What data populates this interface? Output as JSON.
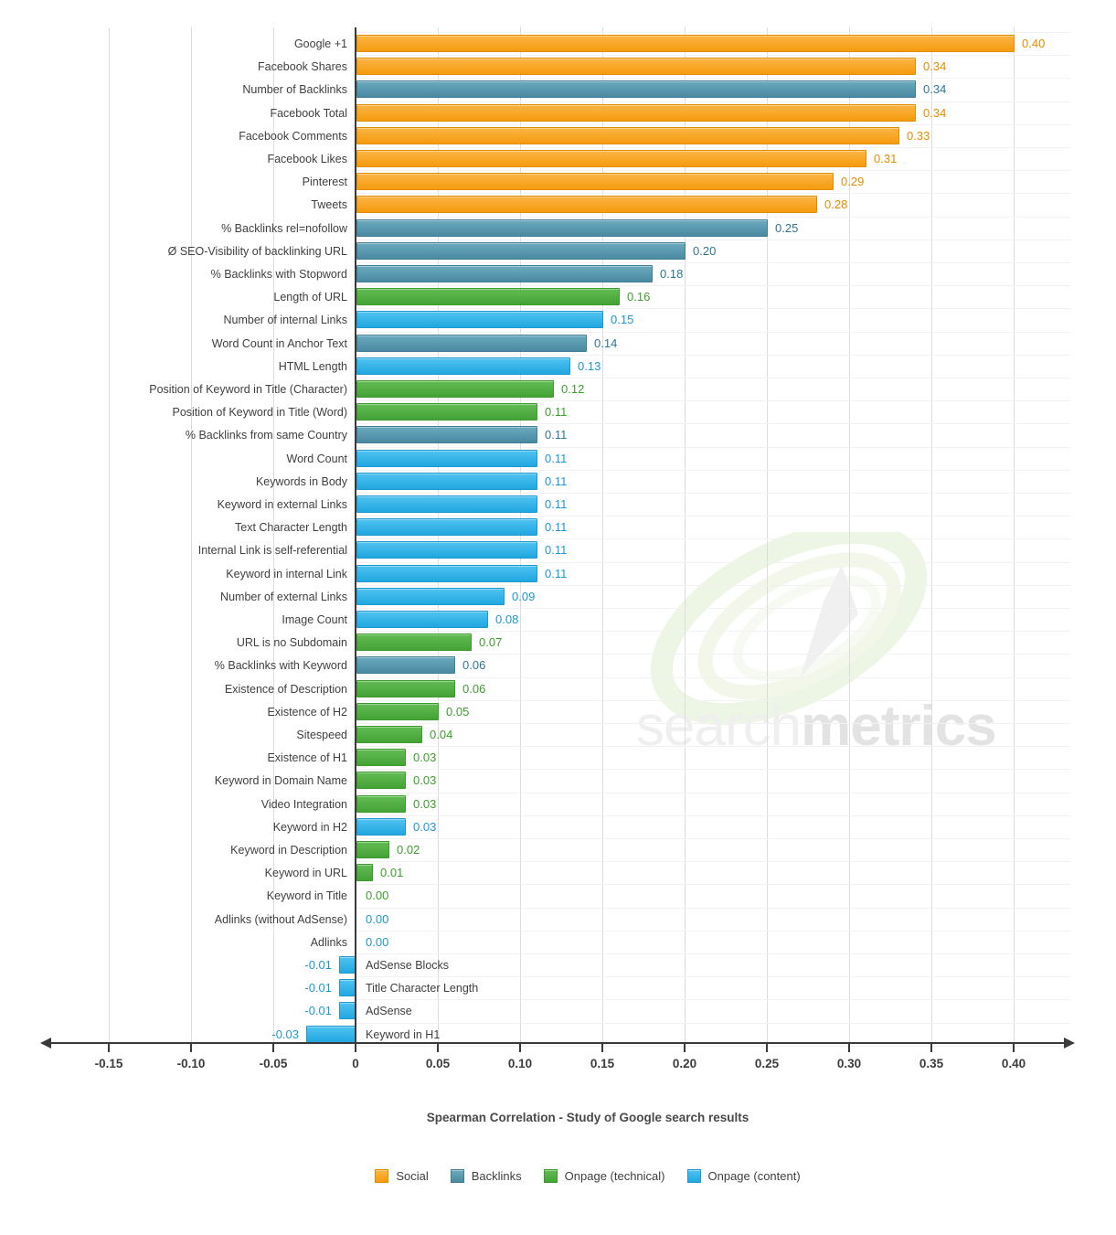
{
  "title": "Spearman Correlation - Study of Google search results",
  "watermark": {
    "light": "search",
    "bold": "metrics"
  },
  "colors": {
    "social": {
      "top": "#FBB545",
      "bottom": "#F59B0E",
      "border": "#E08E00",
      "text": "#E78C00"
    },
    "backlinks": {
      "top": "#6BAABD",
      "bottom": "#4A8AA2",
      "border": "#417E95",
      "text": "#2F7796"
    },
    "technical": {
      "top": "#63BC55",
      "bottom": "#44A335",
      "border": "#3C9A2D",
      "text": "#3E9C2E"
    },
    "content": {
      "top": "#50C3F0",
      "bottom": "#20A7E0",
      "border": "#1E98CF",
      "text": "#1D97D4"
    }
  },
  "legend": [
    {
      "label": "Social",
      "category": "social"
    },
    {
      "label": "Backlinks",
      "category": "backlinks"
    },
    {
      "label": "Onpage (technical)",
      "category": "technical"
    },
    {
      "label": "Onpage (content)",
      "category": "content"
    }
  ],
  "chart_data": {
    "type": "bar",
    "orientation": "horizontal",
    "title": "Spearman Correlation - Study of Google search results",
    "xlim": [
      -0.17,
      0.44
    ],
    "grid": true,
    "legend_position": "bottom",
    "axis_ticks": [
      {
        "v": -0.15,
        "label": "-0.15"
      },
      {
        "v": -0.1,
        "label": "-0.10"
      },
      {
        "v": -0.05,
        "label": "-0.05"
      },
      {
        "v": 0.0,
        "label": "0"
      },
      {
        "v": 0.05,
        "label": "0.05"
      },
      {
        "v": 0.1,
        "label": "0.10"
      },
      {
        "v": 0.15,
        "label": "0.15"
      },
      {
        "v": 0.2,
        "label": "0.20"
      },
      {
        "v": 0.25,
        "label": "0.25"
      },
      {
        "v": 0.3,
        "label": "0.30"
      },
      {
        "v": 0.35,
        "label": "0.35"
      },
      {
        "v": 0.4,
        "label": "0.40"
      }
    ],
    "items": [
      {
        "label": "Google +1",
        "value": 0.4,
        "display": "0.40",
        "category": "social"
      },
      {
        "label": "Facebook Shares",
        "value": 0.34,
        "display": "0.34",
        "category": "social"
      },
      {
        "label": "Number of Backlinks",
        "value": 0.34,
        "display": "0.34",
        "category": "backlinks"
      },
      {
        "label": "Facebook Total",
        "value": 0.34,
        "display": "0.34",
        "category": "social"
      },
      {
        "label": "Facebook Comments",
        "value": 0.33,
        "display": "0.33",
        "category": "social"
      },
      {
        "label": "Facebook Likes",
        "value": 0.31,
        "display": "0.31",
        "category": "social"
      },
      {
        "label": "Pinterest",
        "value": 0.29,
        "display": "0.29",
        "category": "social"
      },
      {
        "label": "Tweets",
        "value": 0.28,
        "display": "0.28",
        "category": "social"
      },
      {
        "label": "% Backlinks rel=nofollow",
        "value": 0.25,
        "display": "0.25",
        "category": "backlinks"
      },
      {
        "label": "Ø SEO-Visibility of backlinking URL",
        "value": 0.2,
        "display": "0.20",
        "category": "backlinks"
      },
      {
        "label": "% Backlinks with Stopword",
        "value": 0.18,
        "display": "0.18",
        "category": "backlinks"
      },
      {
        "label": "Length of URL",
        "value": 0.16,
        "display": "0.16",
        "category": "technical"
      },
      {
        "label": "Number of internal Links",
        "value": 0.15,
        "display": "0.15",
        "category": "content"
      },
      {
        "label": "Word Count in Anchor Text",
        "value": 0.14,
        "display": "0.14",
        "category": "backlinks"
      },
      {
        "label": "HTML Length",
        "value": 0.13,
        "display": "0.13",
        "category": "content"
      },
      {
        "label": "Position of Keyword in Title (Character)",
        "value": 0.12,
        "display": "0.12",
        "category": "technical"
      },
      {
        "label": "Position of Keyword in Title (Word)",
        "value": 0.11,
        "display": "0.11",
        "category": "technical"
      },
      {
        "label": "% Backlinks from same Country",
        "value": 0.11,
        "display": "0.11",
        "category": "backlinks"
      },
      {
        "label": "Word Count",
        "value": 0.11,
        "display": "0.11",
        "category": "content"
      },
      {
        "label": "Keywords in Body",
        "value": 0.11,
        "display": "0.11",
        "category": "content"
      },
      {
        "label": "Keyword in external Links",
        "value": 0.11,
        "display": "0.11",
        "category": "content"
      },
      {
        "label": "Text Character Length",
        "value": 0.11,
        "display": "0.11",
        "category": "content"
      },
      {
        "label": "Internal Link is self-referential",
        "value": 0.11,
        "display": "0.11",
        "category": "content"
      },
      {
        "label": "Keyword in internal Link",
        "value": 0.11,
        "display": "0.11",
        "category": "content"
      },
      {
        "label": "Number of external Links",
        "value": 0.09,
        "display": "0.09",
        "category": "content"
      },
      {
        "label": "Image Count",
        "value": 0.08,
        "display": "0.08",
        "category": "content"
      },
      {
        "label": "URL is no Subdomain",
        "value": 0.07,
        "display": "0.07",
        "category": "technical"
      },
      {
        "label": "% Backlinks with Keyword",
        "value": 0.06,
        "display": "0.06",
        "category": "backlinks"
      },
      {
        "label": "Existence of Description",
        "value": 0.06,
        "display": "0.06",
        "category": "technical"
      },
      {
        "label": "Existence of H2",
        "value": 0.05,
        "display": "0.05",
        "category": "technical"
      },
      {
        "label": "Sitespeed",
        "value": 0.04,
        "display": "0.04",
        "category": "technical"
      },
      {
        "label": "Existence of H1",
        "value": 0.03,
        "display": "0.03",
        "category": "technical"
      },
      {
        "label": "Keyword in Domain Name",
        "value": 0.03,
        "display": "0.03",
        "category": "technical"
      },
      {
        "label": "Video Integration",
        "value": 0.03,
        "display": "0.03",
        "category": "technical"
      },
      {
        "label": "Keyword in H2",
        "value": 0.03,
        "display": "0.03",
        "category": "content"
      },
      {
        "label": "Keyword in Description",
        "value": 0.02,
        "display": "0.02",
        "category": "technical"
      },
      {
        "label": "Keyword in URL",
        "value": 0.01,
        "display": "0.01",
        "category": "technical"
      },
      {
        "label": "Keyword in Title",
        "value": 0.0,
        "display": "0.00",
        "category": "technical"
      },
      {
        "label": "Adlinks (without AdSense)",
        "value": 0.0,
        "display": "0.00",
        "category": "content"
      },
      {
        "label": "Adlinks",
        "value": 0.0,
        "display": "0.00",
        "category": "content"
      },
      {
        "label": "AdSense Blocks",
        "value": -0.01,
        "display": "-0.01",
        "category": "content"
      },
      {
        "label": "Title Character Length",
        "value": -0.01,
        "display": "-0.01",
        "category": "content"
      },
      {
        "label": "AdSense",
        "value": -0.01,
        "display": "-0.01",
        "category": "content"
      },
      {
        "label": "Keyword in H1",
        "value": -0.03,
        "display": "-0.03",
        "category": "content"
      }
    ]
  }
}
